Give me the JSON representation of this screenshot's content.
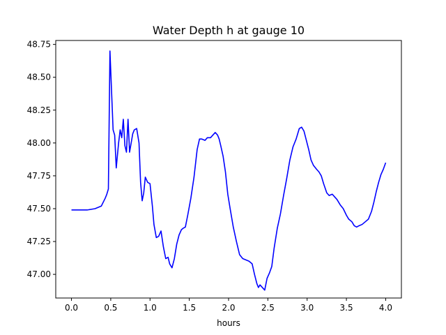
{
  "chart_data": {
    "type": "line",
    "title": "Water Depth h at gauge 10",
    "xlabel": "hours",
    "ylabel": "",
    "xlim": [
      -0.2,
      4.2
    ],
    "ylim": [
      46.82,
      48.78
    ],
    "xticks": [
      0.0,
      0.5,
      1.0,
      1.5,
      2.0,
      2.5,
      3.0,
      3.5,
      4.0
    ],
    "xtick_labels": [
      "0.0",
      "0.5",
      "1.0",
      "1.5",
      "2.0",
      "2.5",
      "3.0",
      "3.5",
      "4.0"
    ],
    "yticks": [
      47.0,
      47.25,
      47.5,
      47.75,
      48.0,
      48.25,
      48.5,
      48.75
    ],
    "ytick_labels": [
      "47.00",
      "47.25",
      "47.50",
      "47.75",
      "48.00",
      "48.25",
      "48.50",
      "48.75"
    ],
    "grid": false,
    "series": [
      {
        "color": "#0000ff",
        "x": [
          0.0,
          0.1,
          0.2,
          0.3,
          0.38,
          0.43,
          0.45,
          0.47,
          0.49,
          0.51,
          0.53,
          0.55,
          0.57,
          0.6,
          0.62,
          0.64,
          0.66,
          0.68,
          0.7,
          0.72,
          0.74,
          0.76,
          0.78,
          0.8,
          0.83,
          0.86,
          0.88,
          0.9,
          0.92,
          0.94,
          0.97,
          1.0,
          1.03,
          1.05,
          1.08,
          1.11,
          1.14,
          1.17,
          1.2,
          1.23,
          1.25,
          1.28,
          1.31,
          1.34,
          1.37,
          1.4,
          1.42,
          1.45,
          1.48,
          1.52,
          1.56,
          1.6,
          1.63,
          1.66,
          1.7,
          1.73,
          1.77,
          1.8,
          1.83,
          1.86,
          1.88,
          1.9,
          1.93,
          1.96,
          1.99,
          2.02,
          2.06,
          2.1,
          2.14,
          2.18,
          2.22,
          2.26,
          2.3,
          2.33,
          2.36,
          2.38,
          2.4,
          2.43,
          2.46,
          2.49,
          2.52,
          2.55,
          2.58,
          2.62,
          2.66,
          2.7,
          2.74,
          2.78,
          2.82,
          2.86,
          2.9,
          2.93,
          2.96,
          2.99,
          3.02,
          3.05,
          3.08,
          3.12,
          3.15,
          3.18,
          3.21,
          3.25,
          3.28,
          3.32,
          3.35,
          3.38,
          3.42,
          3.46,
          3.5,
          3.53,
          3.57,
          3.6,
          3.63,
          3.66,
          3.7,
          3.74,
          3.78,
          3.82,
          3.85,
          3.88,
          3.91,
          3.94,
          3.97,
          4.0
        ],
        "y": [
          47.49,
          47.49,
          47.49,
          47.5,
          47.52,
          47.58,
          47.61,
          47.65,
          48.7,
          48.4,
          48.1,
          48.06,
          47.81,
          48.0,
          48.1,
          48.04,
          48.18,
          47.98,
          47.93,
          48.18,
          47.93,
          48.0,
          48.07,
          48.1,
          48.11,
          48.0,
          47.7,
          47.56,
          47.62,
          47.74,
          47.7,
          47.69,
          47.52,
          47.38,
          47.28,
          47.29,
          47.33,
          47.21,
          47.12,
          47.13,
          47.08,
          47.05,
          47.12,
          47.23,
          47.3,
          47.34,
          47.35,
          47.36,
          47.45,
          47.58,
          47.74,
          47.95,
          48.03,
          48.03,
          48.02,
          48.04,
          48.04,
          48.06,
          48.08,
          48.06,
          48.03,
          47.98,
          47.9,
          47.78,
          47.61,
          47.5,
          47.36,
          47.25,
          47.15,
          47.12,
          47.11,
          47.1,
          47.08,
          47.0,
          46.93,
          46.9,
          46.92,
          46.9,
          46.88,
          46.97,
          47.01,
          47.06,
          47.2,
          47.35,
          47.46,
          47.6,
          47.73,
          47.87,
          47.97,
          48.03,
          48.11,
          48.12,
          48.09,
          48.02,
          47.95,
          47.87,
          47.83,
          47.8,
          47.78,
          47.75,
          47.69,
          47.62,
          47.6,
          47.61,
          47.59,
          47.57,
          47.53,
          47.5,
          47.45,
          47.42,
          47.4,
          47.37,
          47.36,
          47.37,
          47.38,
          47.4,
          47.42,
          47.48,
          47.55,
          47.63,
          47.7,
          47.76,
          47.8,
          47.85
        ]
      }
    ]
  }
}
